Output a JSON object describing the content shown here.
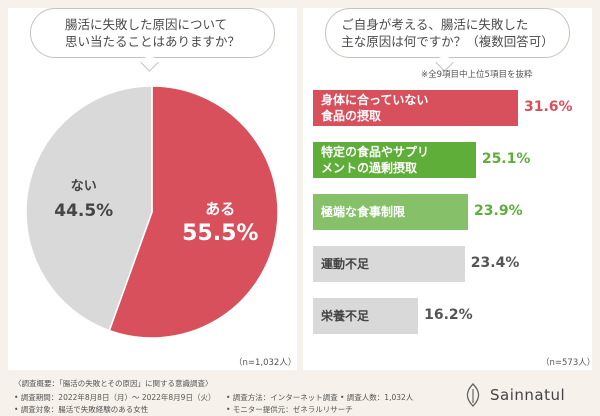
{
  "left": {
    "question": "腸活に失敗した原因について\n思い当たることはありますか？",
    "n_note": "（n=1,032人）"
  },
  "right": {
    "question": "ご自身が考える、腸活に失敗した\n主な原因は何ですか？（複数回答可）",
    "sub_note": "※全9項目中上位5項目を抜粋",
    "n_note": "（n=573人）"
  },
  "chart_data": [
    {
      "type": "pie",
      "slices": [
        {
          "label": "ある",
          "value": 55.5,
          "display": "55.5%",
          "color": "#d9505d"
        },
        {
          "label": "ない",
          "value": 44.5,
          "display": "44.5%",
          "color": "#d9d9d9"
        }
      ]
    },
    {
      "type": "bar",
      "orientation": "horizontal",
      "categories": [
        "身体に合っていない\n食品の摂取",
        "特定の食品やサプリ\nメントの過剰摂取",
        "極端な食事制限",
        "運動不足",
        "栄養不足"
      ],
      "values": [
        31.6,
        25.1,
        23.9,
        23.4,
        16.2
      ],
      "value_labels": [
        "31.6%",
        "25.1%",
        "23.9%",
        "23.4%",
        "16.2%"
      ],
      "colors": [
        "#d9505d",
        "#5fae3a",
        "#86c16a",
        "#d9d9d9",
        "#d9d9d9"
      ],
      "label_colors": [
        "#ffffff",
        "#ffffff",
        "#ffffff",
        "#444444",
        "#444444"
      ],
      "value_colors": [
        "#d9505d",
        "#5fae3a",
        "#5fae3a",
        "#555555",
        "#555555"
      ]
    }
  ],
  "footer": {
    "summary": "〈調査概要：「腸活の失敗とその原因」に関する意識調査〉",
    "period": "• 調査期間：2022年8月8日（月）〜 2022年8月9日（火）",
    "method": "• 調査方法：インターネット調査",
    "people": "• 調査人数：1,032人",
    "target": "• 調査対象：腸活で失敗経験のある女性",
    "provider": "• モニター提供元：ゼネラルリサーチ",
    "brand": "Sainnatul"
  }
}
